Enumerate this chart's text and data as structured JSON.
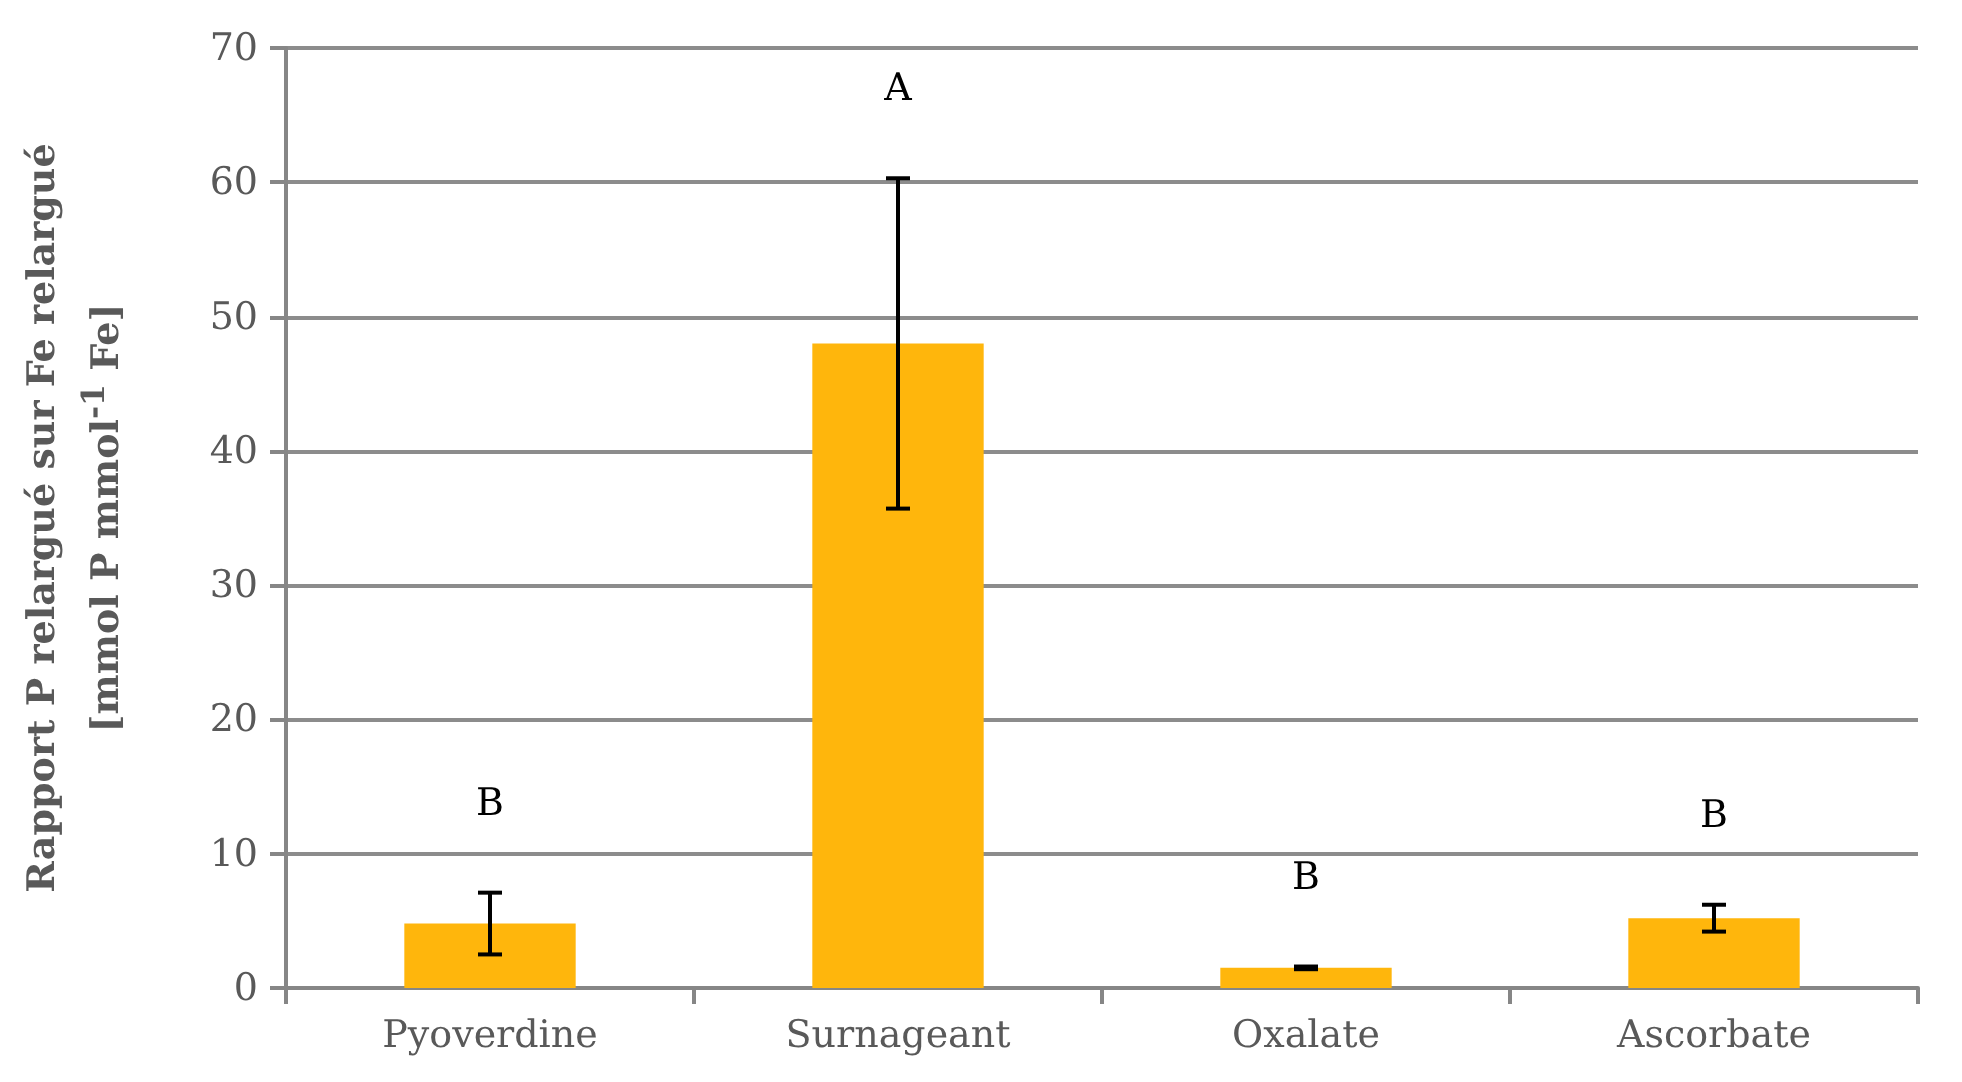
{
  "chart_data": {
    "type": "bar",
    "ylabel": "Rapport P relargué sur Fe relargué\n[mmol P mmol$^{-1}$ Fe]",
    "categories": [
      "Pyoverdine",
      "Surnageant",
      "Oxalate",
      "Ascorbate"
    ],
    "values": [
      4.8,
      48.0,
      1.5,
      5.2
    ],
    "errors": [
      2.3,
      12.3,
      0.1,
      1.0
    ],
    "color": "#ffb60c",
    "ylim": [
      0,
      70
    ],
    "yticks": [
      0,
      10,
      20,
      30,
      40,
      50,
      60,
      70
    ],
    "grid": "y",
    "annotations": [
      "B",
      "A",
      "B",
      "B"
    ]
  }
}
